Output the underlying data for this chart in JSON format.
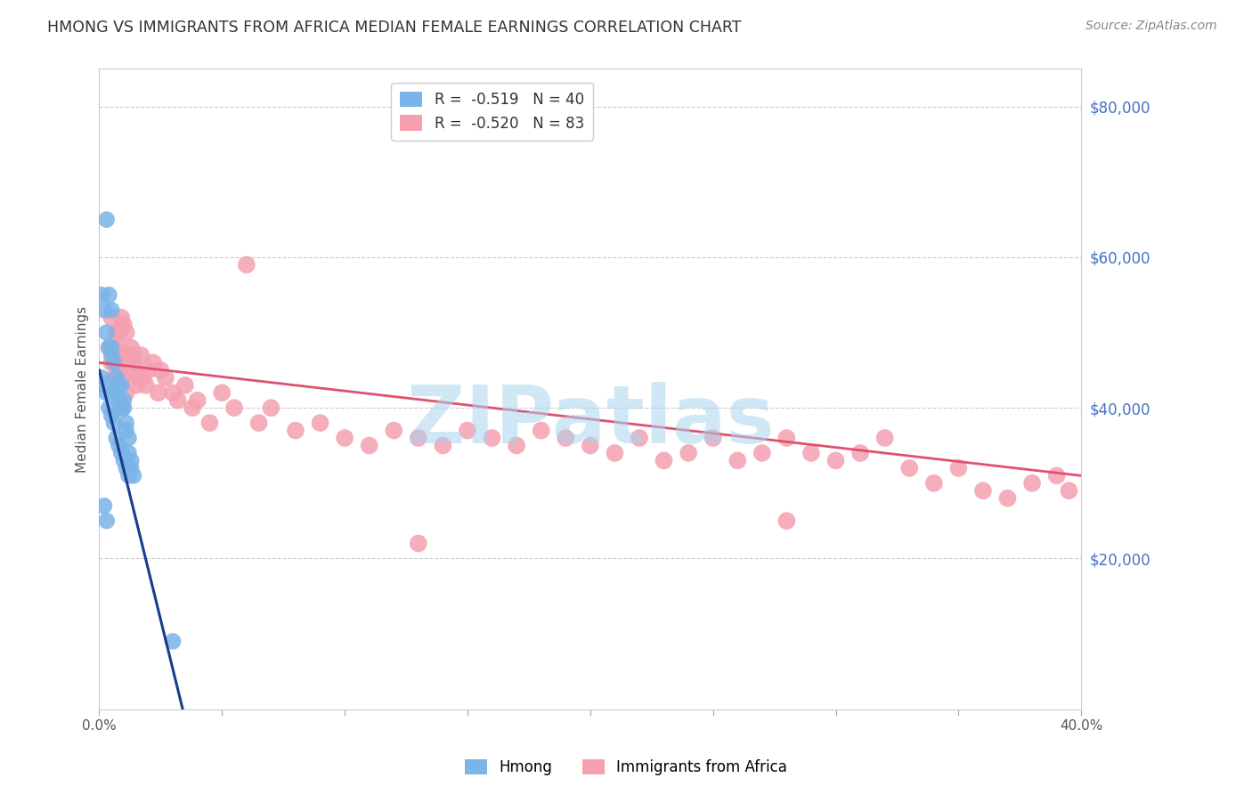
{
  "title": "HMONG VS IMMIGRANTS FROM AFRICA MEDIAN FEMALE EARNINGS CORRELATION CHART",
  "source": "Source: ZipAtlas.com",
  "ylabel": "Median Female Earnings",
  "xlim": [
    0.0,
    0.4
  ],
  "ylim": [
    0,
    85000
  ],
  "xtick_positions": [
    0.0,
    0.05,
    0.1,
    0.15,
    0.2,
    0.25,
    0.3,
    0.35,
    0.4
  ],
  "xticklabels": [
    "0.0%",
    "",
    "",
    "",
    "",
    "",
    "",
    "",
    "40.0%"
  ],
  "yticks_right": [
    20000,
    40000,
    60000,
    80000
  ],
  "ytick_labels_right": [
    "$20,000",
    "$40,000",
    "$60,000",
    "$80,000"
  ],
  "legend_r1": "R =  -0.519",
  "legend_n1": "N = 40",
  "legend_r2": "R =  -0.520",
  "legend_n2": "N = 83",
  "hmong_color": "#7ab4e8",
  "africa_color": "#f4a0b0",
  "hmong_line_color": "#1a3a8c",
  "africa_line_color": "#e05070",
  "watermark": "ZIPatlas",
  "watermark_color": "#aad4f0",
  "background_color": "#ffffff",
  "grid_color": "#cccccc",
  "title_color": "#333333",
  "right_label_color": "#4472c4",
  "ylabel_color": "#555555",
  "hmong_x": [
    0.003,
    0.004,
    0.005,
    0.005,
    0.006,
    0.007,
    0.007,
    0.008,
    0.008,
    0.009,
    0.009,
    0.01,
    0.01,
    0.011,
    0.011,
    0.012,
    0.012,
    0.013,
    0.013,
    0.014,
    0.001,
    0.002,
    0.003,
    0.004,
    0.005,
    0.006,
    0.007,
    0.008,
    0.009,
    0.01,
    0.011,
    0.012,
    0.001,
    0.002,
    0.003,
    0.004,
    0.005,
    0.002,
    0.003,
    0.03
  ],
  "hmong_y": [
    65000,
    55000,
    53000,
    48000,
    46000,
    44000,
    42000,
    43000,
    41000,
    43000,
    40000,
    41000,
    40000,
    38000,
    37000,
    36000,
    34000,
    33000,
    32000,
    31000,
    44000,
    43000,
    42000,
    40000,
    39000,
    38000,
    36000,
    35000,
    34000,
    33000,
    32000,
    31000,
    55000,
    53000,
    50000,
    48000,
    47000,
    27000,
    25000,
    9000
  ],
  "africa_x": [
    0.004,
    0.005,
    0.005,
    0.006,
    0.006,
    0.007,
    0.007,
    0.007,
    0.008,
    0.008,
    0.008,
    0.009,
    0.009,
    0.01,
    0.01,
    0.011,
    0.011,
    0.012,
    0.012,
    0.013,
    0.013,
    0.014,
    0.014,
    0.015,
    0.015,
    0.016,
    0.017,
    0.018,
    0.019,
    0.02,
    0.022,
    0.024,
    0.025,
    0.027,
    0.03,
    0.032,
    0.035,
    0.038,
    0.04,
    0.045,
    0.05,
    0.055,
    0.06,
    0.065,
    0.07,
    0.08,
    0.09,
    0.1,
    0.11,
    0.12,
    0.13,
    0.14,
    0.15,
    0.16,
    0.17,
    0.18,
    0.19,
    0.2,
    0.21,
    0.22,
    0.23,
    0.24,
    0.25,
    0.26,
    0.27,
    0.28,
    0.29,
    0.3,
    0.31,
    0.32,
    0.33,
    0.34,
    0.35,
    0.36,
    0.37,
    0.38,
    0.39,
    0.395,
    0.007,
    0.009,
    0.011,
    0.13,
    0.28
  ],
  "africa_y": [
    48000,
    52000,
    46000,
    44000,
    48000,
    50000,
    47000,
    44000,
    46000,
    50000,
    48000,
    52000,
    44000,
    51000,
    47000,
    46000,
    50000,
    45000,
    47000,
    46000,
    48000,
    46000,
    47000,
    43000,
    45000,
    44000,
    47000,
    44000,
    43000,
    45000,
    46000,
    42000,
    45000,
    44000,
    42000,
    41000,
    43000,
    40000,
    41000,
    38000,
    42000,
    40000,
    59000,
    38000,
    40000,
    37000,
    38000,
    36000,
    35000,
    37000,
    36000,
    35000,
    37000,
    36000,
    35000,
    37000,
    36000,
    35000,
    34000,
    36000,
    33000,
    34000,
    36000,
    33000,
    34000,
    36000,
    34000,
    33000,
    34000,
    36000,
    32000,
    30000,
    32000,
    29000,
    28000,
    30000,
    31000,
    29000,
    42000,
    40000,
    42000,
    22000,
    25000
  ]
}
